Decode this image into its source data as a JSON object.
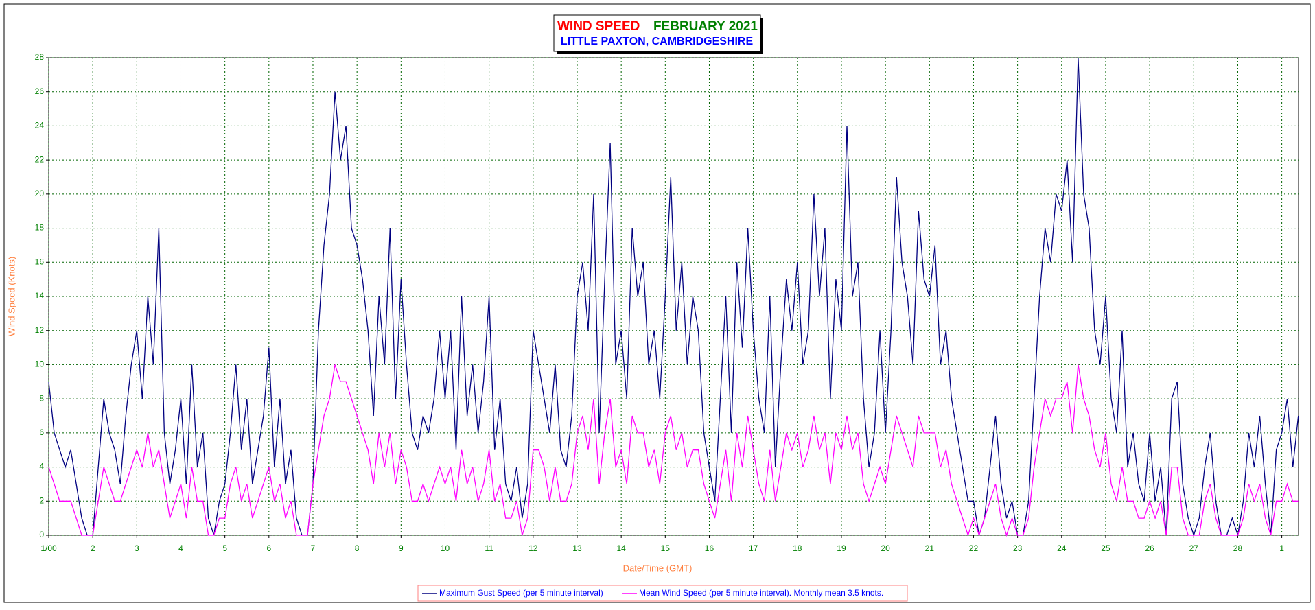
{
  "chart_data": {
    "type": "line",
    "title": "WIND SPEED",
    "title_month": "FEBRUARY 2021",
    "subtitle": "LITTLE PAXTON, CAMBRIDGESHIRE",
    "x_label": "Date/Time (GMT)",
    "y_label": "Wind Speed (Knots)",
    "xlim": [
      1,
      29.38
    ],
    "ylim": [
      0,
      28
    ],
    "xticks": [
      {
        "value": 1,
        "label": "1/00"
      },
      2,
      3,
      4,
      5,
      6,
      7,
      8,
      9,
      10,
      11,
      12,
      13,
      14,
      15,
      16,
      17,
      18,
      19,
      20,
      21,
      22,
      23,
      24,
      25,
      26,
      27,
      28,
      {
        "value": 29,
        "label": "1"
      }
    ],
    "yticks": [
      0,
      2,
      4,
      6,
      8,
      10,
      12,
      14,
      16,
      18,
      20,
      22,
      24,
      26,
      28
    ],
    "grid": true,
    "legend": "bottom",
    "x": [
      1,
      1.125,
      1.25,
      1.375,
      1.5,
      1.625,
      1.75,
      1.875,
      2,
      2.125,
      2.25,
      2.375,
      2.5,
      2.625,
      2.75,
      2.875,
      3,
      3.125,
      3.25,
      3.375,
      3.5,
      3.625,
      3.75,
      3.875,
      4,
      4.125,
      4.25,
      4.375,
      4.5,
      4.625,
      4.75,
      4.875,
      5,
      5.125,
      5.25,
      5.375,
      5.5,
      5.625,
      5.75,
      5.875,
      6,
      6.125,
      6.25,
      6.375,
      6.5,
      6.625,
      6.75,
      6.875,
      7,
      7.125,
      7.25,
      7.375,
      7.5,
      7.625,
      7.75,
      7.875,
      8,
      8.125,
      8.25,
      8.375,
      8.5,
      8.625,
      8.75,
      8.875,
      9,
      9.125,
      9.25,
      9.375,
      9.5,
      9.625,
      9.75,
      9.875,
      10,
      10.125,
      10.25,
      10.375,
      10.5,
      10.625,
      10.75,
      10.875,
      11,
      11.125,
      11.25,
      11.375,
      11.5,
      11.625,
      11.75,
      11.875,
      12,
      12.125,
      12.25,
      12.375,
      12.5,
      12.625,
      12.75,
      12.875,
      13,
      13.125,
      13.25,
      13.375,
      13.5,
      13.625,
      13.75,
      13.875,
      14,
      14.125,
      14.25,
      14.375,
      14.5,
      14.625,
      14.75,
      14.875,
      15,
      15.125,
      15.25,
      15.375,
      15.5,
      15.625,
      15.75,
      15.875,
      16,
      16.125,
      16.25,
      16.375,
      16.5,
      16.625,
      16.75,
      16.875,
      17,
      17.125,
      17.25,
      17.375,
      17.5,
      17.625,
      17.75,
      17.875,
      18,
      18.125,
      18.25,
      18.375,
      18.5,
      18.625,
      18.75,
      18.875,
      19,
      19.125,
      19.25,
      19.375,
      19.5,
      19.625,
      19.75,
      19.875,
      20,
      20.125,
      20.25,
      20.375,
      20.5,
      20.625,
      20.75,
      20.875,
      21,
      21.125,
      21.25,
      21.375,
      21.5,
      21.625,
      21.75,
      21.875,
      22,
      22.125,
      22.25,
      22.375,
      22.5,
      22.625,
      22.75,
      22.875,
      23,
      23.125,
      23.25,
      23.375,
      23.5,
      23.625,
      23.75,
      23.875,
      24,
      24.125,
      24.25,
      24.375,
      24.5,
      24.625,
      24.75,
      24.875,
      25,
      25.125,
      25.25,
      25.375,
      25.5,
      25.625,
      25.75,
      25.875,
      26,
      26.125,
      26.25,
      26.375,
      26.5,
      26.625,
      26.75,
      26.875,
      27,
      27.125,
      27.25,
      27.375,
      27.5,
      27.625,
      27.75,
      27.875,
      28,
      28.125,
      28.25,
      28.375,
      28.5,
      28.625,
      28.75,
      28.875,
      29,
      29.125,
      29.25,
      29.375
    ],
    "series": [
      {
        "name": "Maximum Gust Speed (per 5 minute interval)",
        "color": "#000080",
        "values": [
          9,
          6,
          5,
          4,
          5,
          3,
          1,
          0,
          0,
          4,
          8,
          6,
          5,
          3,
          7,
          10,
          12,
          8,
          14,
          10,
          18,
          6,
          3,
          5,
          8,
          3,
          10,
          4,
          6,
          1,
          0,
          2,
          3,
          6,
          10,
          5,
          8,
          3,
          5,
          7,
          11,
          4,
          8,
          3,
          5,
          1,
          0,
          0,
          3,
          12,
          17,
          20,
          26,
          22,
          24,
          18,
          17,
          15,
          12,
          7,
          14,
          10,
          18,
          8,
          15,
          10,
          6,
          5,
          7,
          6,
          8,
          12,
          8,
          12,
          5,
          14,
          7,
          10,
          6,
          9,
          14,
          5,
          8,
          3,
          2,
          4,
          1,
          3,
          12,
          10,
          8,
          6,
          10,
          5,
          4,
          7,
          14,
          16,
          12,
          20,
          6,
          15,
          23,
          10,
          12,
          8,
          18,
          14,
          16,
          10,
          12,
          8,
          14,
          21,
          12,
          16,
          10,
          14,
          12,
          6,
          4,
          2,
          8,
          14,
          6,
          16,
          11,
          18,
          12,
          8,
          6,
          14,
          4,
          10,
          15,
          12,
          16,
          10,
          12,
          20,
          14,
          18,
          8,
          15,
          12,
          24,
          14,
          16,
          8,
          4,
          6,
          12,
          6,
          12,
          21,
          16,
          14,
          10,
          19,
          15,
          14,
          17,
          10,
          12,
          8,
          6,
          4,
          2,
          2,
          0,
          1,
          4,
          7,
          3,
          1,
          2,
          0,
          0,
          2,
          8,
          14,
          18,
          16,
          20,
          19,
          22,
          16,
          28,
          20,
          18,
          12,
          10,
          14,
          8,
          6,
          12,
          4,
          6,
          3,
          2,
          6,
          2,
          4,
          0,
          8,
          9,
          3,
          1,
          0,
          1,
          4,
          6,
          2,
          0,
          0,
          1,
          0,
          2,
          6,
          4,
          7,
          3,
          0,
          5,
          6,
          8,
          4,
          7
        ]
      },
      {
        "name": "Mean Wind Speed (per 5 minute interval). Monthly mean 3.5 knots.",
        "color": "#ff00ff",
        "values": [
          4,
          3,
          2,
          2,
          2,
          1,
          0,
          0,
          0,
          2,
          4,
          3,
          2,
          2,
          3,
          4,
          5,
          4,
          6,
          4,
          5,
          3,
          1,
          2,
          3,
          1,
          4,
          2,
          2,
          0,
          0,
          1,
          1,
          3,
          4,
          2,
          3,
          1,
          2,
          3,
          4,
          2,
          3,
          1,
          2,
          0,
          0,
          0,
          3,
          5,
          7,
          8,
          10,
          9,
          9,
          8,
          7,
          6,
          5,
          3,
          6,
          4,
          6,
          3,
          5,
          4,
          2,
          2,
          3,
          2,
          3,
          4,
          3,
          4,
          2,
          5,
          3,
          4,
          2,
          3,
          5,
          2,
          3,
          1,
          1,
          2,
          0,
          1,
          5,
          5,
          4,
          2,
          4,
          2,
          2,
          3,
          6,
          7,
          5,
          8,
          3,
          6,
          8,
          4,
          5,
          3,
          7,
          6,
          6,
          4,
          5,
          3,
          6,
          7,
          5,
          6,
          4,
          5,
          5,
          3,
          2,
          1,
          3,
          5,
          2,
          6,
          4,
          7,
          5,
          3,
          2,
          5,
          2,
          4,
          6,
          5,
          6,
          4,
          5,
          7,
          5,
          6,
          3,
          6,
          5,
          7,
          5,
          6,
          3,
          2,
          3,
          4,
          3,
          5,
          7,
          6,
          5,
          4,
          7,
          6,
          6,
          6,
          4,
          5,
          3,
          2,
          1,
          0,
          1,
          0,
          1,
          2,
          3,
          1,
          0,
          1,
          0,
          0,
          1,
          4,
          6,
          8,
          7,
          8,
          8,
          9,
          6,
          10,
          8,
          7,
          5,
          4,
          6,
          3,
          2,
          4,
          2,
          2,
          1,
          1,
          2,
          1,
          2,
          0,
          4,
          4,
          1,
          0,
          0,
          0,
          2,
          3,
          1,
          0,
          0,
          0,
          0,
          1,
          3,
          2,
          3,
          1,
          0,
          2,
          2,
          3,
          2,
          2
        ]
      }
    ]
  }
}
